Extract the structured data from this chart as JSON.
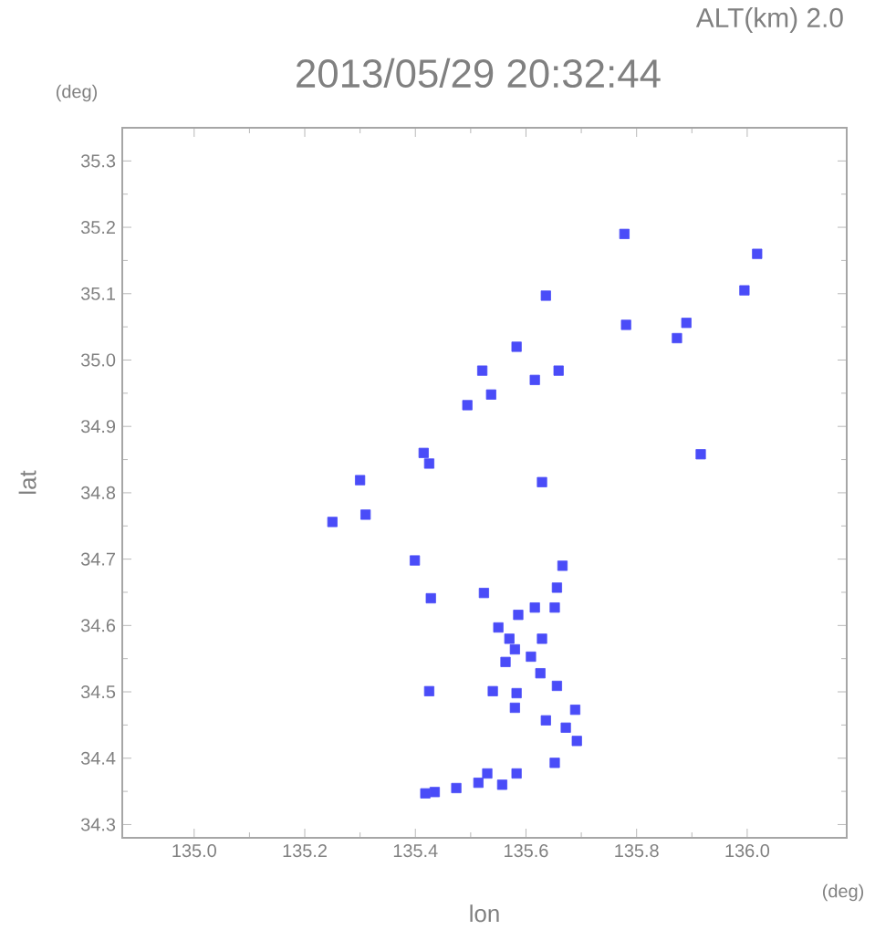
{
  "chart_data": {
    "type": "scatter",
    "title": "2013/05/29 20:32:44",
    "subtitle": "ALT(km) 2.0",
    "xlabel": "lon",
    "ylabel": "lat",
    "annotations": [
      "(deg)",
      "(deg)"
    ],
    "xlim": [
      134.87,
      136.18
    ],
    "ylim": [
      34.28,
      35.35
    ],
    "xticks": [
      {
        "value": 135.0,
        "label": "135.0"
      },
      135.2,
      135.4,
      135.6,
      135.8,
      {
        "value": 136.0,
        "label": "136.0"
      }
    ],
    "yticks": [
      34.3,
      34.4,
      34.5,
      34.6,
      34.7,
      34.8,
      34.9,
      {
        "value": 35.0,
        "label": "35.0"
      },
      35.1,
      35.2,
      35.3
    ],
    "marker": "square",
    "series": [
      {
        "color": "#4a4cf8",
        "x": [
          135.778,
          136.018,
          135.995,
          135.781,
          135.89,
          135.873,
          135.583,
          135.659,
          135.616,
          135.537,
          135.494,
          135.415,
          135.425,
          135.3,
          135.916,
          135.629,
          135.636,
          135.521,
          135.25,
          135.31,
          135.399,
          135.666,
          135.524,
          135.656,
          135.428,
          135.616,
          135.652,
          135.586,
          135.55,
          135.57,
          135.629,
          135.58,
          135.609,
          135.563,
          135.626,
          135.425,
          135.54,
          135.583,
          135.58,
          135.656,
          135.689,
          135.636,
          135.672,
          135.692,
          135.652,
          135.53,
          135.583,
          135.435,
          135.474,
          135.514,
          135.557,
          135.418
        ],
        "values": [
          35.19,
          35.16,
          35.105,
          35.053,
          35.056,
          35.033,
          35.02,
          34.984,
          34.97,
          34.948,
          34.932,
          34.86,
          34.844,
          34.819,
          34.858,
          34.816,
          35.097,
          34.984,
          34.756,
          34.767,
          34.698,
          34.69,
          34.649,
          34.657,
          34.641,
          34.627,
          34.627,
          34.616,
          34.597,
          34.58,
          34.58,
          34.564,
          34.553,
          34.545,
          34.528,
          34.501,
          34.501,
          34.498,
          34.476,
          34.509,
          34.473,
          34.457,
          34.446,
          34.426,
          34.393,
          34.377,
          34.377,
          34.349,
          34.355,
          34.363,
          34.36,
          34.347
        ]
      }
    ]
  }
}
